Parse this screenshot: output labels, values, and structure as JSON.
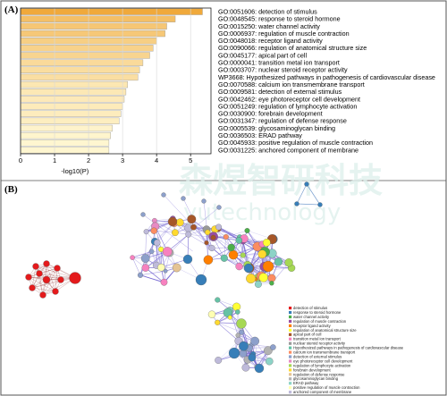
{
  "panel_a_label": "(A)",
  "panel_b_label": "(B)",
  "watermark_text": "森煜智研科技",
  "watermark_sub": "yutechnology",
  "chart_data": [
    {
      "type": "bar",
      "orientation": "horizontal",
      "categories": [
        "GO:0051606: detection of stimulus",
        "GO:0048545: response to steroid hormone",
        "GO:0015250: water channel activity",
        "GO:0006937: regulation of muscle contraction",
        "GO:0048018: receptor ligand activity",
        "GO:0090066: regulation of anatomical structure size",
        "GO:0045177: apical part of cell",
        "GO:0000041: transition metal ion transport",
        "GO:0003707: nuclear steroid receptor activity",
        "WP3668: Hypothesized pathways in pathogenesis of cardiovascular disease",
        "GO:0070588: calcium ion transmembrane transport",
        "GO:0009581: detection of external stimulus",
        "GO:0042462: eye photoreceptor cell development",
        "GO:0051249: regulation of lymphocyte activation",
        "GO:0030900: forebrain development",
        "GO:0031347: regulation of defense response",
        "GO:0005539: glycosaminoglycan binding",
        "GO:0036503: ERAD pathway",
        "GO:0045933: positive regulation of muscle contraction",
        "GO:0031225: anchored component of membrane"
      ],
      "values": [
        5.35,
        4.55,
        4.3,
        4.25,
        4.0,
        3.9,
        3.8,
        3.6,
        3.5,
        3.45,
        3.15,
        3.1,
        3.05,
        3.0,
        2.95,
        2.9,
        2.7,
        2.65,
        2.6,
        2.6
      ],
      "xlabel": "-log10(P)",
      "xticks": [
        0,
        1,
        2,
        3,
        4,
        5
      ],
      "xlim": [
        0,
        5.6
      ],
      "color_high": "#f0a93b",
      "color_low": "#fff6d0"
    },
    {
      "type": "network",
      "legend": [
        {
          "label": "detection of stimulus",
          "color": "#e41a1c"
        },
        {
          "label": "response to steroid hormone",
          "color": "#377eb8"
        },
        {
          "label": "water channel activity",
          "color": "#4daf4a"
        },
        {
          "label": "regulation of muscle contraction",
          "color": "#984ea3"
        },
        {
          "label": "receptor ligand activity",
          "color": "#ff7f00"
        },
        {
          "label": "regulation of anatomical structure size",
          "color": "#ffff33"
        },
        {
          "label": "apical part of cell",
          "color": "#a65628"
        },
        {
          "label": "transition metal ion transport",
          "color": "#f781bf"
        },
        {
          "label": "nuclear steroid receptor activity",
          "color": "#999999"
        },
        {
          "label": "Hypothesized pathways in pathogenesis of cardiovascular disease",
          "color": "#66c2a5"
        },
        {
          "label": "calcium ion transmembrane transport",
          "color": "#fc8d62"
        },
        {
          "label": "detection of external stimulus",
          "color": "#8da0cb"
        },
        {
          "label": "eye photoreceptor cell development",
          "color": "#e78ac3"
        },
        {
          "label": "regulation of lymphocyte activation",
          "color": "#a6d854"
        },
        {
          "label": "forebrain development",
          "color": "#ffd92f"
        },
        {
          "label": "regulation of defense response",
          "color": "#e5c494"
        },
        {
          "label": "glycosaminoglycan binding",
          "color": "#b3b3b3"
        },
        {
          "label": "ERAD pathway",
          "color": "#8dd3c7"
        },
        {
          "label": "positive regulation of muscle contraction",
          "color": "#ffffb3"
        },
        {
          "label": "anchored component of membrane",
          "color": "#bebada"
        }
      ]
    }
  ]
}
